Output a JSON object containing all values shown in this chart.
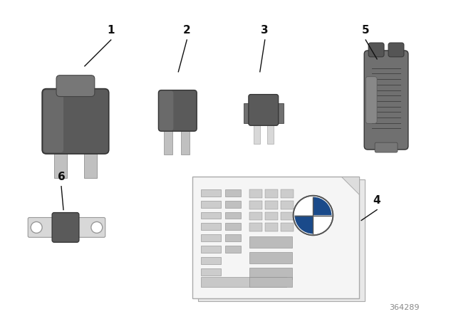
{
  "bg_color": "#ffffff",
  "fig_width": 6.4,
  "fig_height": 4.48,
  "dpi": 100,
  "part_number": "364289",
  "dark_gray": "#5a5a5a",
  "mid_gray": "#707070",
  "light_gray": "#a0a0a0",
  "silver": "#c0c0c0",
  "silver2": "#d8d8d8",
  "line_color": "#111111",
  "text_color": "#111111",
  "card_bg": "#f5f5f5",
  "card_border": "#aaaaaa"
}
